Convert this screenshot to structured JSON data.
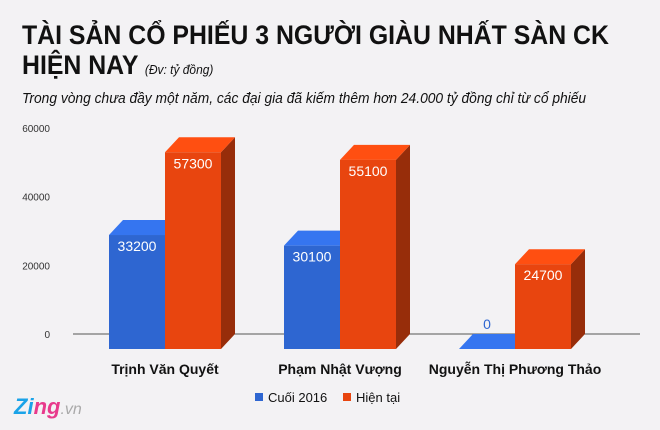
{
  "title": "TÀI SẢN CỔ PHIẾU 3 NGƯỜI GIÀU NHẤT SÀN CK",
  "title_line2": "HIỆN NAY",
  "unit": "(Đv: tỷ đồng)",
  "subtitle": "Trong vòng chưa đầy một năm, các đại gia đã kiếm thêm hơn 24.000 tỷ đồng chỉ từ cổ phiếu",
  "logo": {
    "main": "Zing",
    "suffix": ".vn"
  },
  "chart_data": {
    "type": "bar",
    "categories": [
      "Trịnh Văn Quyết",
      "Phạm Nhật Vượng",
      "Nguyễn Thị Phương Thảo"
    ],
    "series": [
      {
        "name": "Cuối 2016",
        "values": [
          33200,
          30100,
          0
        ],
        "color": "#2e66d1"
      },
      {
        "name": "Hiện tại",
        "values": [
          57300,
          55100,
          24700
        ],
        "color": "#e8450f"
      }
    ],
    "yticks": [
      "0",
      "20000",
      "40000",
      "60000"
    ],
    "ylim": [
      0,
      60000
    ],
    "legend": "bottom",
    "grid": false,
    "style": "3d"
  }
}
